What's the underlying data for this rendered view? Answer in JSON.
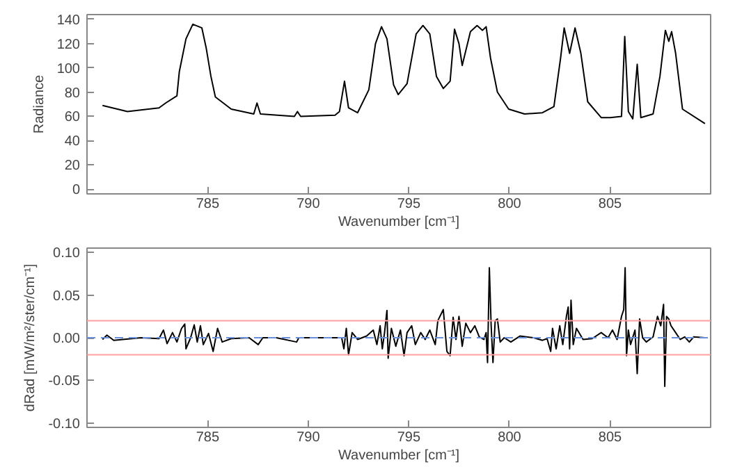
{
  "chart_data": [
    {
      "type": "line",
      "xlabel": "Wavenumber [cm⁻¹]",
      "ylabel": "Radiance",
      "xlim": [
        779,
        810
      ],
      "xticks": [
        785,
        790,
        795,
        800,
        805
      ],
      "ylim": [
        -4,
        144
      ],
      "yticks": [
        0,
        20,
        40,
        60,
        80,
        100,
        120,
        140
      ],
      "series": [
        {
          "color": "#000000",
          "x": [
            779.77,
            781.01,
            782.58,
            782.91,
            783.47,
            783.59,
            783.92,
            784.26,
            784.71,
            784.93,
            785.16,
            785.38,
            786.17,
            787.29,
            787.45,
            787.62,
            789.31,
            789.46,
            789.62,
            791.33,
            791.55,
            791.8,
            792.0,
            792.45,
            793.01,
            793.34,
            793.64,
            793.91,
            794.24,
            794.47,
            794.91,
            795.36,
            795.7,
            796.04,
            796.37,
            796.71,
            797.05,
            797.27,
            797.49,
            797.65,
            798.06,
            798.39,
            798.66,
            798.84,
            799.06,
            799.4,
            799.96,
            800.75,
            801.64,
            802.21,
            802.54,
            802.72,
            802.99,
            803.26,
            803.55,
            803.89,
            804.56,
            805.01,
            805.57,
            805.73,
            805.91,
            806.13,
            806.35,
            806.53,
            807.14,
            807.48,
            807.75,
            807.92,
            808.06,
            808.26,
            808.6,
            809.72
          ],
          "values": [
            69,
            64,
            67,
            71,
            77,
            97,
            124,
            136,
            133,
            116,
            93,
            76,
            66,
            62,
            71,
            62,
            60,
            64,
            60,
            61,
            64,
            89,
            67,
            63,
            82,
            120,
            134,
            124,
            86,
            78,
            87,
            128,
            135,
            128,
            93,
            83,
            89,
            132,
            120,
            102,
            130,
            135,
            131,
            134,
            108,
            80,
            66,
            62,
            63,
            68,
            108,
            133,
            112,
            133,
            112,
            72,
            59,
            59,
            60,
            126,
            64,
            58,
            103,
            59,
            62,
            93,
            131,
            122,
            130,
            112,
            66,
            54
          ]
        }
      ]
    },
    {
      "type": "line",
      "xlabel": "Wavenumber [cm⁻¹]",
      "ylabel": "dRad [mW/m²/ster/cm⁻¹]",
      "xlim": [
        779,
        810
      ],
      "xticks": [
        785,
        790,
        795,
        800,
        805
      ],
      "ylim": [
        -0.105,
        0.105
      ],
      "yticks": [
        {
          "value": -0.1,
          "label": "-0.10"
        },
        {
          "value": -0.05,
          "label": "-0.05"
        },
        {
          "value": 0,
          "label": "0.00"
        },
        {
          "value": 0.05,
          "label": "0.05"
        },
        {
          "value": 0.1,
          "label": "0.10"
        }
      ],
      "ref_lines": [
        {
          "axis": "y",
          "value": 0.02,
          "color": "#ff9f9f",
          "line_style": "solid"
        },
        {
          "axis": "y",
          "value": -0.02,
          "color": "#ff9f9f",
          "line_style": "solid"
        },
        {
          "axis": "y",
          "value": 0,
          "color": "#6a8fd8",
          "line_style": "dashed"
        }
      ],
      "series": [
        {
          "color": "#000000",
          "x": [
            779.77,
            779.99,
            780.33,
            781.68,
            782.58,
            782.8,
            782.98,
            783.25,
            783.47,
            783.7,
            783.86,
            783.92,
            784.15,
            784.33,
            784.48,
            784.64,
            784.78,
            785.04,
            785.27,
            785.49,
            785.72,
            786.17,
            787.06,
            787.51,
            787.74,
            788.41,
            789.42,
            789.53,
            790.43,
            791.66,
            791.77,
            791.89,
            792.0,
            792.18,
            792.45,
            792.9,
            793.23,
            793.41,
            793.57,
            793.68,
            793.79,
            793.91,
            793.97,
            794.13,
            794.35,
            794.58,
            794.76,
            794.91,
            795.14,
            795.32,
            795.59,
            795.81,
            796.04,
            796.31,
            796.44,
            796.71,
            796.89,
            797.05,
            797.2,
            797.34,
            797.49,
            797.65,
            797.83,
            798.06,
            798.28,
            798.5,
            798.73,
            798.84,
            798.91,
            799.0,
            799.09,
            799.18,
            799.29,
            799.4,
            799.54,
            799.74,
            800.07,
            800.52,
            801.2,
            801.64,
            801.87,
            802.05,
            802.14,
            802.32,
            802.5,
            802.65,
            802.83,
            802.92,
            802.99,
            803.06,
            803.17,
            803.33,
            803.66,
            804.11,
            804.56,
            804.9,
            805.12,
            805.35,
            805.57,
            805.68,
            805.75,
            805.82,
            805.91,
            806.02,
            806.24,
            806.35,
            806.47,
            806.62,
            806.8,
            807.14,
            807.36,
            807.52,
            807.66,
            807.72,
            807.81,
            807.92,
            808.03,
            808.26,
            808.49,
            808.71,
            808.94,
            809.16,
            809.72
          ],
          "values": [
            -0.002,
            0.003,
            -0.003,
            0.0,
            -0.001,
            0.009,
            -0.007,
            0.006,
            -0.005,
            0.011,
            0.016,
            -0.013,
            0.0,
            0.015,
            -0.005,
            0.014,
            -0.008,
            0.005,
            -0.016,
            0.011,
            -0.005,
            -0.001,
            0.0,
            -0.008,
            0.0,
            0.0,
            -0.005,
            0.0,
            0.0,
            0.0,
            -0.013,
            0.011,
            -0.02,
            0.006,
            -0.002,
            0.002,
            0.009,
            -0.008,
            0.014,
            -0.013,
            0.006,
            0.032,
            -0.024,
            0.011,
            -0.01,
            0.009,
            -0.021,
            0.006,
            0.014,
            -0.008,
            0.006,
            -0.002,
            0.009,
            -0.008,
            0.02,
            0.033,
            -0.016,
            -0.021,
            0.024,
            -0.002,
            0.025,
            -0.01,
            0.017,
            0.006,
            0.014,
            0.001,
            -0.002,
            0.006,
            -0.029,
            0.082,
            0.014,
            -0.029,
            0.02,
            0.022,
            -0.005,
            0.0,
            -0.005,
            0.002,
            0.0,
            -0.003,
            -0.001,
            -0.016,
            0.011,
            -0.013,
            0.014,
            -0.008,
            0.025,
            0.036,
            -0.013,
            0.044,
            -0.008,
            0.011,
            -0.002,
            -0.001,
            0.006,
            0.0,
            0.009,
            -0.002,
            0.025,
            0.033,
            0.082,
            -0.021,
            0.009,
            -0.008,
            0.009,
            -0.042,
            0.022,
            0.0,
            -0.005,
            0.001,
            0.025,
            0.014,
            0.039,
            -0.057,
            0.025,
            0.022,
            0.014,
            0.006,
            -0.002,
            0.001,
            -0.005,
            0.001,
            0.0
          ]
        }
      ]
    }
  ]
}
